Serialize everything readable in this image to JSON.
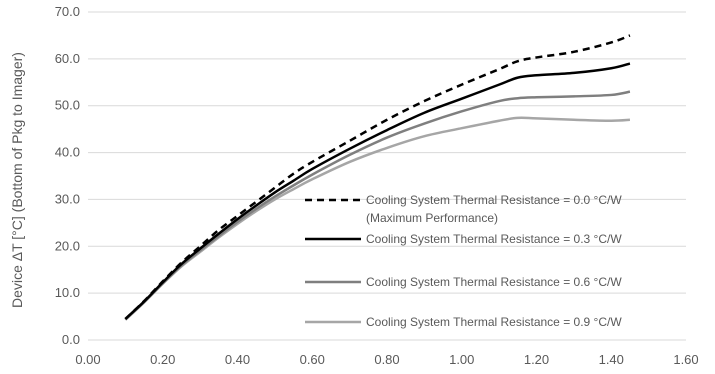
{
  "chart_data": {
    "type": "line",
    "title": "",
    "xlabel": "",
    "ylabel": "Device ΔT [°C] (Bottom of Pkg to Imager)",
    "xlim": [
      0.0,
      1.6
    ],
    "ylim": [
      0.0,
      70.0
    ],
    "x_ticks": [
      "0.00",
      "0.20",
      "0.40",
      "0.60",
      "0.80",
      "1.00",
      "1.20",
      "1.40",
      "1.60"
    ],
    "y_ticks": [
      "0.0",
      "10.0",
      "20.0",
      "30.0",
      "40.0",
      "50.0",
      "60.0",
      "70.0"
    ],
    "grid": "horizontal",
    "legend_position": "lower-right",
    "series": [
      {
        "name": "Cooling System Thermal Resistance = 0.0 °C/W",
        "name_line2": "(Maximum Performance)",
        "color": "#000000",
        "style": "dashed",
        "x": [
          0.1,
          0.15,
          0.2,
          0.25,
          0.3,
          0.35,
          0.4,
          0.45,
          0.5,
          0.55,
          0.6,
          0.7,
          0.8,
          0.9,
          1.0,
          1.1,
          1.15,
          1.2,
          1.3,
          1.4,
          1.45
        ],
        "y": [
          4.5,
          8.3,
          12.5,
          16.5,
          20.0,
          23.5,
          26.5,
          29.5,
          32.5,
          35.5,
          38.0,
          42.5,
          47.0,
          51.0,
          54.5,
          57.8,
          59.5,
          60.3,
          61.5,
          63.5,
          65.0
        ]
      },
      {
        "name": "Cooling System Thermal Resistance = 0.3 °C/W",
        "color": "#000000",
        "style": "solid",
        "x": [
          0.1,
          0.15,
          0.2,
          0.25,
          0.3,
          0.35,
          0.4,
          0.45,
          0.5,
          0.55,
          0.6,
          0.7,
          0.8,
          0.9,
          1.0,
          1.1,
          1.15,
          1.2,
          1.3,
          1.4,
          1.45
        ],
        "y": [
          4.5,
          8.2,
          12.3,
          16.2,
          19.5,
          22.7,
          25.8,
          28.7,
          31.5,
          34.0,
          36.5,
          40.8,
          44.8,
          48.5,
          51.5,
          54.5,
          56.0,
          56.5,
          57.0,
          58.0,
          59.0
        ]
      },
      {
        "name": "Cooling System Thermal Resistance = 0.6 °C/W",
        "color": "#7f7f7f",
        "style": "solid",
        "x": [
          0.1,
          0.15,
          0.2,
          0.25,
          0.3,
          0.35,
          0.4,
          0.45,
          0.5,
          0.55,
          0.6,
          0.7,
          0.8,
          0.9,
          1.0,
          1.1,
          1.15,
          1.2,
          1.3,
          1.4,
          1.45
        ],
        "y": [
          4.4,
          8.1,
          12.1,
          15.9,
          19.1,
          22.2,
          25.2,
          28.0,
          30.6,
          33.0,
          35.3,
          39.5,
          43.2,
          46.2,
          48.8,
          51.0,
          51.6,
          51.8,
          52.0,
          52.3,
          53.0
        ]
      },
      {
        "name": "Cooling System Thermal Resistance = 0.9 °C/W",
        "color": "#a6a6a6",
        "style": "solid",
        "x": [
          0.1,
          0.15,
          0.2,
          0.25,
          0.3,
          0.35,
          0.4,
          0.45,
          0.5,
          0.55,
          0.6,
          0.7,
          0.8,
          0.9,
          1.0,
          1.1,
          1.15,
          1.2,
          1.3,
          1.4,
          1.45
        ],
        "y": [
          4.3,
          8.0,
          12.0,
          15.7,
          18.8,
          21.9,
          24.8,
          27.5,
          30.0,
          32.2,
          34.3,
          38.0,
          41.0,
          43.5,
          45.2,
          46.8,
          47.4,
          47.3,
          47.0,
          46.8,
          47.0
        ]
      }
    ]
  }
}
